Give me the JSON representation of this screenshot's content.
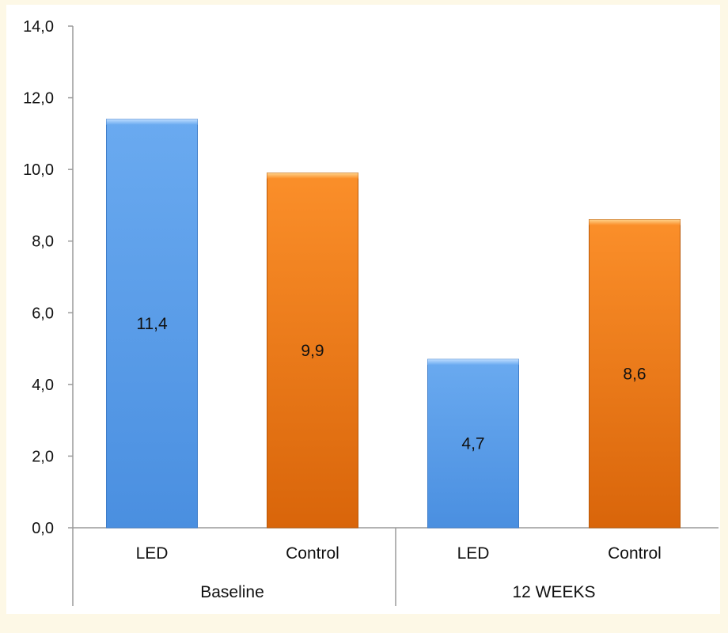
{
  "colors": {
    "page_background": "#fdf8e6",
    "LED": "#5b9ee8",
    "Control": "#f5821f",
    "axis": "#9a9a9a"
  },
  "chart_data": {
    "type": "bar",
    "title": "",
    "xlabel": "",
    "ylabel": "",
    "ylim": [
      0,
      14
    ],
    "yticks": [
      "0,0",
      "2,0",
      "4,0",
      "6,0",
      "8,0",
      "10,0",
      "12,0",
      "14,0"
    ],
    "grid": false,
    "legend": "none",
    "groups": [
      {
        "label": "Baseline",
        "bars": [
          {
            "category": "LED",
            "value": 11.4,
            "label": "11,4"
          },
          {
            "category": "Control",
            "value": 9.9,
            "label": "9,9"
          }
        ]
      },
      {
        "label": "12 WEEKS",
        "bars": [
          {
            "category": "LED",
            "value": 4.7,
            "label": "4,7"
          },
          {
            "category": "Control",
            "value": 8.6,
            "label": "8,6"
          }
        ]
      }
    ]
  }
}
